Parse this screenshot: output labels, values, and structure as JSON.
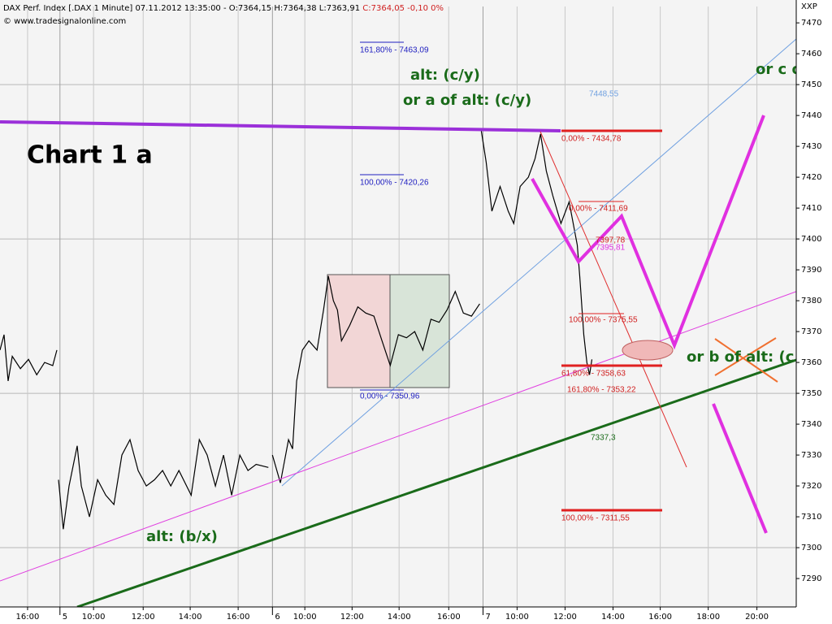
{
  "chart_data": {
    "type": "line",
    "title": "DAX Perf. Index [.DAX  1 Minute] 07.11.2012 13:35:00 - O:7364,15 H:7364,38 L:7363,91",
    "title_change": "C:7364,05 -0,10 0%",
    "source": "© www.tradesignalonline.com",
    "y_axis_label": "XXP",
    "chart_label": "Chart 1 a",
    "color": "#000000",
    "grid": true,
    "xlim": [
      0,
      33.2
    ],
    "ylim": [
      7280.8,
      7475.3
    ],
    "xticks": [
      {
        "value": 1.15,
        "label": "16:00"
      },
      {
        "value": 2.5,
        "label": "5"
      },
      {
        "value": 3.9,
        "label": "10:00"
      },
      {
        "value": 5.97,
        "label": "12:00"
      },
      {
        "value": 7.93,
        "label": "14:00"
      },
      {
        "value": 9.93,
        "label": "16:00"
      },
      {
        "value": 11.36,
        "label": "6"
      },
      {
        "value": 12.71,
        "label": "10:00"
      },
      {
        "value": 14.68,
        "label": "12:00"
      },
      {
        "value": 16.64,
        "label": "14:00"
      },
      {
        "value": 18.71,
        "label": "16:00"
      },
      {
        "value": 20.14,
        "label": "7"
      },
      {
        "value": 21.56,
        "label": "10:00"
      },
      {
        "value": 23.56,
        "label": "12:00"
      },
      {
        "value": 25.56,
        "label": "14:00"
      },
      {
        "value": 27.53,
        "label": "16:00"
      },
      {
        "value": 29.53,
        "label": "18:00"
      },
      {
        "value": 31.56,
        "label": "20:00"
      }
    ],
    "yticks": [
      7290,
      7300,
      7310,
      7320,
      7330,
      7340,
      7350,
      7360,
      7370,
      7380,
      7390,
      7400,
      7410,
      7420,
      7430,
      7440,
      7450,
      7460,
      7470
    ],
    "x": [
      0,
      0.17,
      0.34,
      0.51,
      0.85,
      1.19,
      1.53,
      1.86,
      2.2,
      2.37,
      2.4,
      2.44,
      2.64,
      2.88,
      3.22,
      3.39,
      3.73,
      4.07,
      4.41,
      4.75,
      5.08,
      5.42,
      5.76,
      6.1,
      6.44,
      6.78,
      7.12,
      7.46,
      7.97,
      8.31,
      8.64,
      8.98,
      9.32,
      9.66,
      10,
      10.34,
      10.68,
      11.19,
      11.28,
      11.36,
      11.69,
      12.03,
      12.2,
      12.37,
      12.61,
      12.88,
      13.22,
      13.49,
      13.69,
      13.9,
      14.07,
      14.24,
      14.58,
      14.92,
      15.25,
      15.59,
      15.93,
      16.27,
      16.61,
      16.95,
      17.29,
      17.63,
      17.97,
      18.31,
      18.64,
      18.98,
      19.32,
      19.66,
      20,
      20.03,
      20.07,
      20.27,
      20.51,
      20.85,
      21.19,
      21.42,
      21.69,
      22.03,
      22.31,
      22.54,
      22.78,
      23.05,
      23.39,
      23.73,
      24.07,
      24.17,
      24.27,
      24.34,
      24.47,
      24.58,
      24.68
    ],
    "values": [
      7364,
      7369,
      7354,
      7362,
      7358,
      7361,
      7356,
      7360,
      7359,
      7364,
      null,
      7322,
      7306,
      7320,
      7333,
      7320,
      7310,
      7322,
      7317,
      7314,
      7330,
      7335,
      7325,
      7320,
      7322,
      7325,
      7320,
      7325,
      7317,
      7335,
      7330,
      7320,
      7330,
      7317,
      7330,
      7325,
      7327,
      7326,
      null,
      7330,
      7321,
      7335,
      7332,
      7354,
      7364,
      7367,
      7364,
      7377,
      7388,
      7380,
      7377,
      7367,
      7372,
      7378,
      7376,
      7375,
      7367,
      7359,
      7369,
      7368,
      7370,
      7364,
      7374,
      7373,
      7377,
      7383,
      7376,
      7375,
      7379,
      null,
      7435,
      7425,
      7409,
      7417,
      7409,
      7405,
      7417,
      7420,
      7426,
      7434,
      7422,
      7414,
      7405,
      7412,
      7398,
      7388,
      7377,
      7369,
      7360,
      7356,
      7361
    ],
    "annotations": [
      "161,80% - 7463,09",
      "100,00% - 7420,26",
      "0,00% - 7350,96",
      "7448,55",
      "0,00% - 7434,78",
      "0,00% - 7411,69",
      "7397,78",
      "7395,81",
      "100,00% - 7375,55",
      "61,80% - 7358,63",
      "161,80% - 7353,22",
      "7337,3",
      "100,00% - 7311,55",
      "alt: (c/y)",
      "or a of alt: (c/y)",
      "or c o",
      "or b of alt: (c",
      "alt: (b/x)"
    ]
  }
}
